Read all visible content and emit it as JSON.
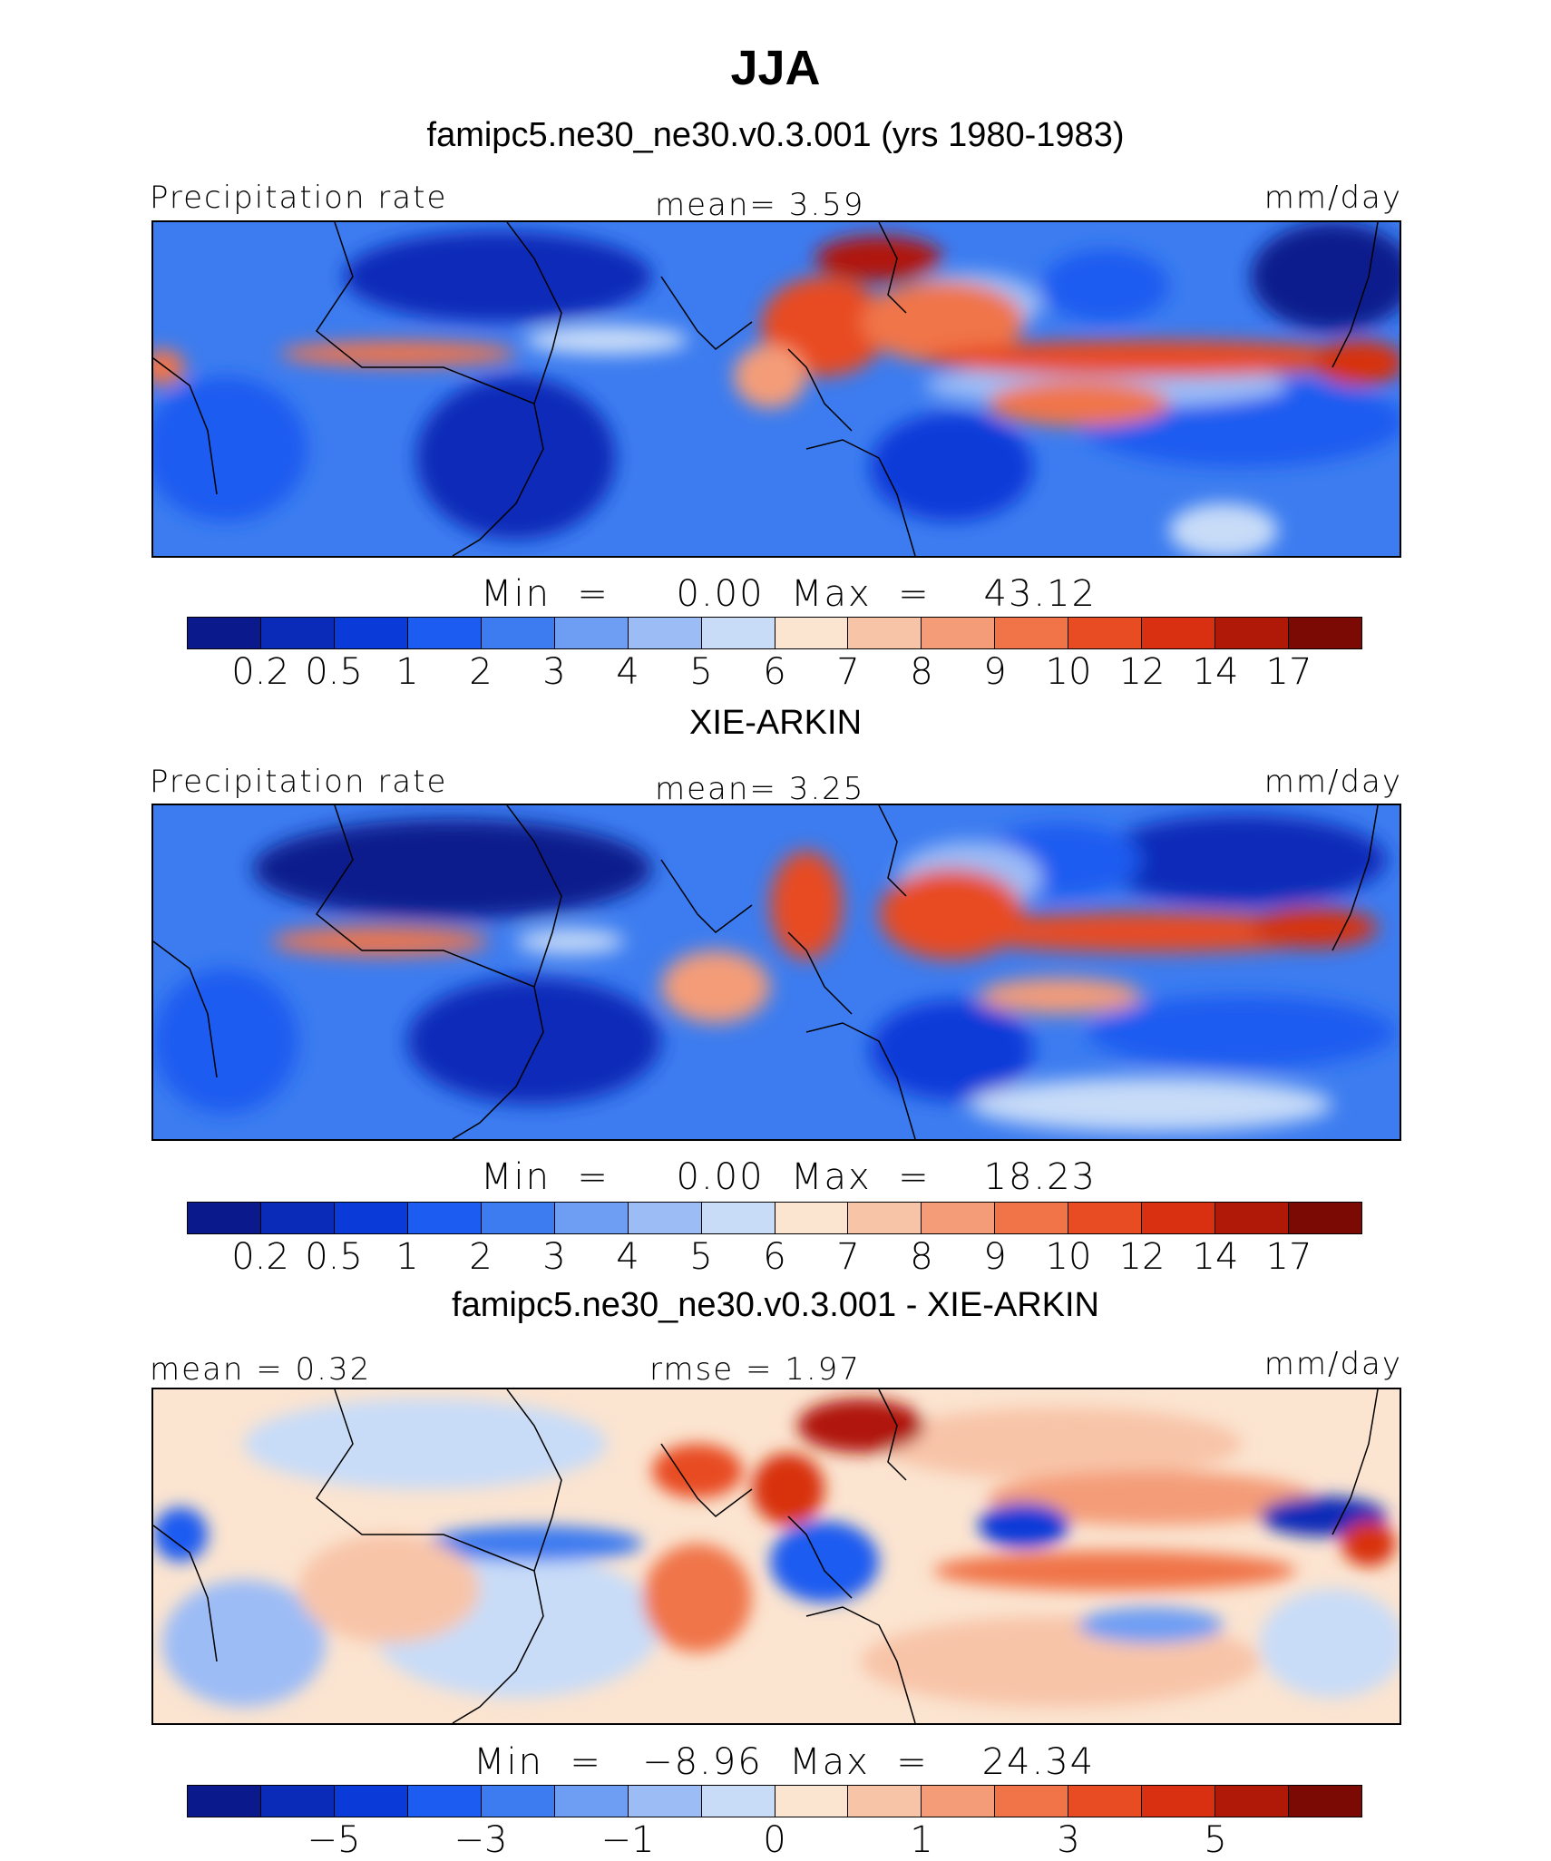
{
  "title": "JJA",
  "colorscale_abs": [
    "#0a1a8c",
    "#0a2ab8",
    "#0a3ad8",
    "#1c5cf0",
    "#3c7cf0",
    "#6e9ef4",
    "#9cbcf6",
    "#c8dcf8",
    "#fbe4d0",
    "#f8c4a8",
    "#f49c78",
    "#f07448",
    "#e84c22",
    "#d83010",
    "#b01808",
    "#7c0a04"
  ],
  "colorscale_diff": [
    "#0a1a8c",
    "#0a2ab8",
    "#0a3ad8",
    "#1c5cf0",
    "#3c7cf0",
    "#6e9ef4",
    "#9cbcf6",
    "#c8dcf8",
    "#fbe4d0",
    "#f8c4a8",
    "#f49c78",
    "#f07448",
    "#e84c22",
    "#d83010",
    "#b01808",
    "#7c0a04"
  ],
  "panels": [
    {
      "id": "model",
      "subtitle": "famipc5.ne30_ne30.v0.3.001 (yrs 1980-1983)",
      "left_label": "Precipitation  rate",
      "center_label": "mean=    3.59",
      "units": "mm/day",
      "minmax": "Min  =     0.00  Max  =    43.12",
      "ticks": [
        "0.2",
        "0.5",
        "1",
        "2",
        "3",
        "4",
        "5",
        "6",
        "7",
        "8",
        "9",
        "10",
        "12",
        "14",
        "17"
      ]
    },
    {
      "id": "obs",
      "subtitle": "XIE-ARKIN",
      "left_label": "Precipitation  rate",
      "center_label": "mean=    3.25",
      "units": "mm/day",
      "minmax": "Min  =     0.00  Max  =    18.23",
      "ticks": [
        "0.2",
        "0.5",
        "1",
        "2",
        "3",
        "4",
        "5",
        "6",
        "7",
        "8",
        "9",
        "10",
        "12",
        "14",
        "17"
      ]
    },
    {
      "id": "diff",
      "subtitle": "famipc5.ne30_ne30.v0.3.001 - XIE-ARKIN",
      "left_label": "mean  =    0.32",
      "center_label": "rmse  =    1.97",
      "units": "mm/day",
      "minmax": "Min  =   −8.96  Max  =    24.34",
      "ticks": [
        "−5",
        "−3",
        "−1",
        "0",
        "1",
        "3",
        "5"
      ]
    }
  ]
}
